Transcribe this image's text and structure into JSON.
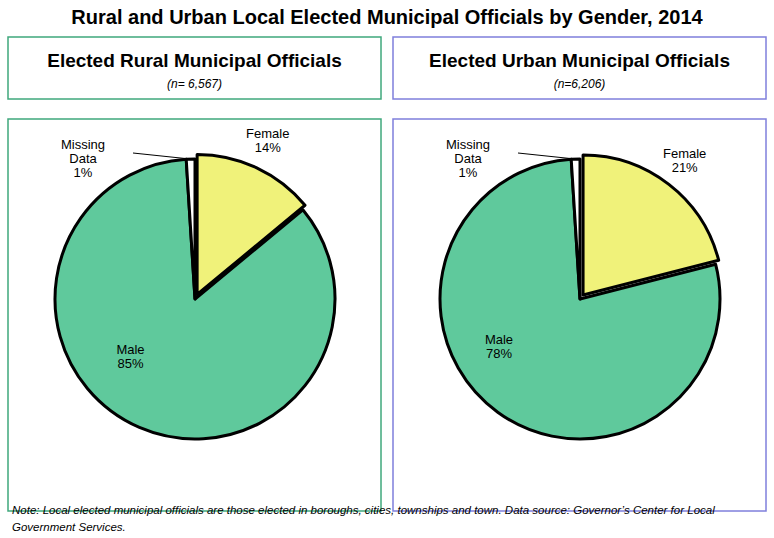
{
  "title": "Rural and Urban Local Elected Municipal Officials by Gender, 2014",
  "note": "Note: Local elected municipal officials are those elected in boroughs, cities, townships and town. Data source: Governor’s Center for Local Government Services.",
  "chart_data": [
    {
      "type": "pie",
      "title": "Elected Rural Municipal Officials",
      "subtitle": "(n= 6,567)",
      "categories": [
        "Female",
        "Male",
        "Missing Data"
      ],
      "values": [
        14,
        85,
        1
      ],
      "value_labels": [
        "14%",
        "85%",
        "1%"
      ],
      "data_labels": true,
      "colors": [
        "#f0f27a",
        "#5fc99c",
        "#ffffff"
      ]
    },
    {
      "type": "pie",
      "title": "Elected Urban Municipal Officials",
      "subtitle": "(n=6,206)",
      "categories": [
        "Female",
        "Male",
        "Missing Data"
      ],
      "values": [
        21,
        78,
        1
      ],
      "value_labels": [
        "21%",
        "78%",
        "1%"
      ],
      "data_labels": true,
      "colors": [
        "#f0f27a",
        "#5fc99c",
        "#ffffff"
      ]
    }
  ]
}
